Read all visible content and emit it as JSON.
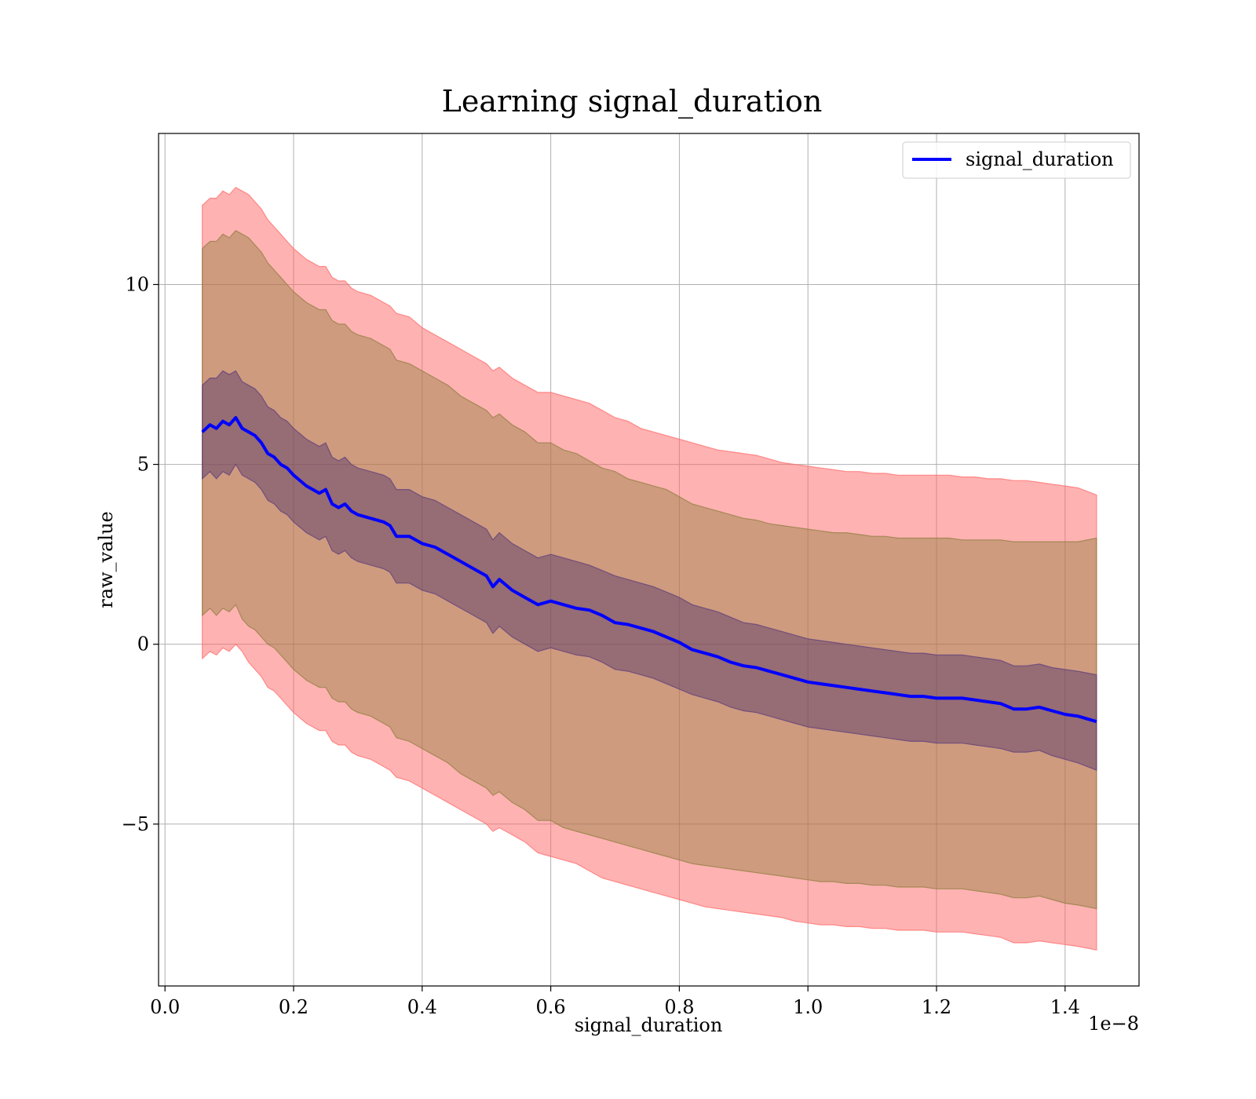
{
  "chart_data": {
    "type": "line",
    "title": "Learning signal_duration",
    "xlabel": "signal_duration",
    "ylabel": "raw_value",
    "x_offset_label": "1e−8",
    "xlim": [
      -0.01,
      1.515
    ],
    "ylim": [
      -9.5,
      14.2
    ],
    "xticks": [
      0.0,
      0.2,
      0.4,
      0.6,
      0.8,
      1.0,
      1.2,
      1.4
    ],
    "xtick_labels": [
      "0.0",
      "0.2",
      "0.4",
      "0.6",
      "0.8",
      "1.0",
      "1.2",
      "1.4"
    ],
    "yticks": [
      -5,
      0,
      5,
      10
    ],
    "ytick_labels": [
      "−5",
      "0",
      "5",
      "10"
    ],
    "grid": true,
    "legend": {
      "position": "top-right",
      "entries": [
        "signal_duration"
      ]
    },
    "colors": {
      "line": "#0000ff",
      "outer_band": "#ff6666",
      "middle_band": "#8b7c3a",
      "inner_band": "#6b3a6b"
    },
    "series": [
      {
        "name": "signal_duration",
        "x": [
          0.058,
          0.07,
          0.08,
          0.09,
          0.1,
          0.11,
          0.12,
          0.13,
          0.14,
          0.15,
          0.16,
          0.17,
          0.18,
          0.19,
          0.2,
          0.22,
          0.24,
          0.25,
          0.26,
          0.27,
          0.28,
          0.29,
          0.3,
          0.32,
          0.34,
          0.35,
          0.36,
          0.38,
          0.4,
          0.42,
          0.44,
          0.46,
          0.48,
          0.5,
          0.51,
          0.52,
          0.54,
          0.56,
          0.58,
          0.6,
          0.62,
          0.64,
          0.66,
          0.68,
          0.7,
          0.72,
          0.74,
          0.76,
          0.78,
          0.8,
          0.82,
          0.84,
          0.86,
          0.88,
          0.9,
          0.92,
          0.94,
          0.96,
          0.98,
          1.0,
          1.02,
          1.04,
          1.06,
          1.08,
          1.1,
          1.12,
          1.14,
          1.16,
          1.18,
          1.2,
          1.22,
          1.24,
          1.26,
          1.28,
          1.3,
          1.32,
          1.34,
          1.36,
          1.38,
          1.4,
          1.42,
          1.449
        ],
        "values": [
          5.9,
          6.1,
          6.0,
          6.2,
          6.1,
          6.3,
          6.0,
          5.9,
          5.8,
          5.6,
          5.3,
          5.2,
          5.0,
          4.9,
          4.7,
          4.4,
          4.2,
          4.3,
          3.9,
          3.8,
          3.9,
          3.7,
          3.6,
          3.5,
          3.4,
          3.3,
          3.0,
          3.0,
          2.8,
          2.7,
          2.5,
          2.3,
          2.1,
          1.9,
          1.6,
          1.8,
          1.5,
          1.3,
          1.1,
          1.2,
          1.1,
          1.0,
          0.95,
          0.8,
          0.6,
          0.55,
          0.45,
          0.35,
          0.2,
          0.05,
          -0.15,
          -0.25,
          -0.35,
          -0.5,
          -0.6,
          -0.65,
          -0.75,
          -0.85,
          -0.95,
          -1.05,
          -1.1,
          -1.15,
          -1.2,
          -1.25,
          -1.3,
          -1.35,
          -1.4,
          -1.45,
          -1.45,
          -1.5,
          -1.5,
          -1.5,
          -1.55,
          -1.6,
          -1.65,
          -1.8,
          -1.8,
          -1.75,
          -1.85,
          -1.95,
          -2.0,
          -2.15
        ],
        "band_inner_upper": [
          7.2,
          7.4,
          7.4,
          7.6,
          7.5,
          7.6,
          7.3,
          7.2,
          7.1,
          6.9,
          6.6,
          6.5,
          6.3,
          6.2,
          6.0,
          5.7,
          5.5,
          5.6,
          5.2,
          5.1,
          5.2,
          5.0,
          4.9,
          4.8,
          4.7,
          4.6,
          4.3,
          4.3,
          4.1,
          4.0,
          3.8,
          3.6,
          3.4,
          3.2,
          2.9,
          3.1,
          2.8,
          2.6,
          2.4,
          2.5,
          2.4,
          2.3,
          2.2,
          2.05,
          1.9,
          1.8,
          1.7,
          1.6,
          1.45,
          1.3,
          1.1,
          1.0,
          0.9,
          0.75,
          0.6,
          0.55,
          0.45,
          0.35,
          0.25,
          0.15,
          0.1,
          0.05,
          0.0,
          -0.05,
          -0.1,
          -0.15,
          -0.2,
          -0.25,
          -0.25,
          -0.3,
          -0.3,
          -0.3,
          -0.35,
          -0.4,
          -0.45,
          -0.6,
          -0.6,
          -0.55,
          -0.65,
          -0.7,
          -0.75,
          -0.85
        ],
        "band_inner_lower": [
          4.6,
          4.8,
          4.6,
          4.8,
          4.7,
          5.0,
          4.7,
          4.6,
          4.5,
          4.3,
          4.0,
          3.9,
          3.7,
          3.6,
          3.4,
          3.1,
          2.9,
          3.0,
          2.6,
          2.5,
          2.6,
          2.4,
          2.3,
          2.2,
          2.1,
          2.0,
          1.7,
          1.7,
          1.5,
          1.4,
          1.2,
          1.0,
          0.8,
          0.6,
          0.3,
          0.5,
          0.2,
          0.0,
          -0.2,
          -0.1,
          -0.2,
          -0.3,
          -0.35,
          -0.5,
          -0.7,
          -0.75,
          -0.85,
          -0.95,
          -1.1,
          -1.25,
          -1.4,
          -1.5,
          -1.6,
          -1.75,
          -1.85,
          -1.9,
          -2.0,
          -2.1,
          -2.2,
          -2.3,
          -2.35,
          -2.4,
          -2.45,
          -2.5,
          -2.55,
          -2.6,
          -2.65,
          -2.7,
          -2.7,
          -2.75,
          -2.75,
          -2.75,
          -2.8,
          -2.85,
          -2.9,
          -3.0,
          -3.0,
          -2.95,
          -3.1,
          -3.2,
          -3.3,
          -3.5
        ],
        "band_middle_upper": [
          11.0,
          11.2,
          11.2,
          11.4,
          11.3,
          11.5,
          11.4,
          11.3,
          11.1,
          10.9,
          10.6,
          10.4,
          10.2,
          10.0,
          9.8,
          9.5,
          9.3,
          9.3,
          9.0,
          8.9,
          8.9,
          8.7,
          8.6,
          8.5,
          8.3,
          8.2,
          7.9,
          7.8,
          7.6,
          7.4,
          7.2,
          6.9,
          6.7,
          6.5,
          6.3,
          6.4,
          6.1,
          5.9,
          5.6,
          5.6,
          5.4,
          5.3,
          5.1,
          4.9,
          4.8,
          4.6,
          4.5,
          4.4,
          4.3,
          4.1,
          3.9,
          3.8,
          3.7,
          3.6,
          3.5,
          3.45,
          3.35,
          3.3,
          3.25,
          3.2,
          3.15,
          3.1,
          3.1,
          3.05,
          3.0,
          3.0,
          2.95,
          2.95,
          2.95,
          2.95,
          2.95,
          2.9,
          2.9,
          2.9,
          2.9,
          2.85,
          2.85,
          2.85,
          2.85,
          2.85,
          2.85,
          2.95
        ],
        "band_middle_lower": [
          0.8,
          1.0,
          0.8,
          1.0,
          0.9,
          1.1,
          0.7,
          0.5,
          0.4,
          0.2,
          0.0,
          -0.1,
          -0.3,
          -0.5,
          -0.7,
          -1.0,
          -1.2,
          -1.2,
          -1.5,
          -1.6,
          -1.6,
          -1.8,
          -1.9,
          -2.0,
          -2.2,
          -2.3,
          -2.6,
          -2.7,
          -2.9,
          -3.1,
          -3.3,
          -3.6,
          -3.8,
          -4.0,
          -4.2,
          -4.1,
          -4.4,
          -4.6,
          -4.9,
          -4.9,
          -5.1,
          -5.2,
          -5.3,
          -5.4,
          -5.5,
          -5.6,
          -5.7,
          -5.8,
          -5.9,
          -6.0,
          -6.1,
          -6.15,
          -6.2,
          -6.25,
          -6.3,
          -6.35,
          -6.4,
          -6.45,
          -6.5,
          -6.55,
          -6.6,
          -6.6,
          -6.65,
          -6.65,
          -6.7,
          -6.7,
          -6.75,
          -6.75,
          -6.75,
          -6.8,
          -6.8,
          -6.8,
          -6.85,
          -6.9,
          -6.95,
          -7.05,
          -7.05,
          -7.0,
          -7.1,
          -7.2,
          -7.25,
          -7.35
        ],
        "band_outer_upper": [
          12.2,
          12.4,
          12.4,
          12.6,
          12.5,
          12.7,
          12.6,
          12.5,
          12.3,
          12.1,
          11.8,
          11.6,
          11.4,
          11.2,
          11.0,
          10.7,
          10.5,
          10.5,
          10.2,
          10.1,
          10.1,
          9.9,
          9.8,
          9.7,
          9.5,
          9.4,
          9.2,
          9.1,
          8.8,
          8.6,
          8.4,
          8.2,
          8.0,
          7.8,
          7.6,
          7.7,
          7.4,
          7.2,
          7.0,
          7.0,
          6.9,
          6.8,
          6.7,
          6.5,
          6.3,
          6.2,
          6.0,
          5.9,
          5.8,
          5.7,
          5.6,
          5.5,
          5.4,
          5.35,
          5.3,
          5.25,
          5.15,
          5.05,
          5.0,
          4.95,
          4.9,
          4.85,
          4.8,
          4.8,
          4.75,
          4.75,
          4.7,
          4.7,
          4.7,
          4.7,
          4.7,
          4.65,
          4.65,
          4.6,
          4.6,
          4.55,
          4.55,
          4.5,
          4.45,
          4.4,
          4.35,
          4.15
        ],
        "band_outer_lower": [
          -0.4,
          -0.2,
          -0.3,
          -0.1,
          -0.2,
          0.0,
          -0.2,
          -0.5,
          -0.7,
          -0.9,
          -1.2,
          -1.3,
          -1.5,
          -1.7,
          -1.9,
          -2.2,
          -2.4,
          -2.4,
          -2.7,
          -2.8,
          -2.8,
          -3.0,
          -3.1,
          -3.2,
          -3.4,
          -3.5,
          -3.7,
          -3.8,
          -4.0,
          -4.2,
          -4.4,
          -4.6,
          -4.8,
          -5.0,
          -5.2,
          -5.1,
          -5.3,
          -5.5,
          -5.8,
          -5.9,
          -6.0,
          -6.1,
          -6.3,
          -6.5,
          -6.6,
          -6.7,
          -6.8,
          -6.9,
          -7.0,
          -7.1,
          -7.2,
          -7.3,
          -7.35,
          -7.4,
          -7.45,
          -7.5,
          -7.55,
          -7.6,
          -7.7,
          -7.75,
          -7.8,
          -7.8,
          -7.85,
          -7.85,
          -7.9,
          -7.9,
          -7.95,
          -7.95,
          -7.95,
          -8.0,
          -8.0,
          -8.0,
          -8.05,
          -8.1,
          -8.15,
          -8.3,
          -8.3,
          -8.25,
          -8.3,
          -8.35,
          -8.4,
          -8.5
        ]
      }
    ]
  }
}
